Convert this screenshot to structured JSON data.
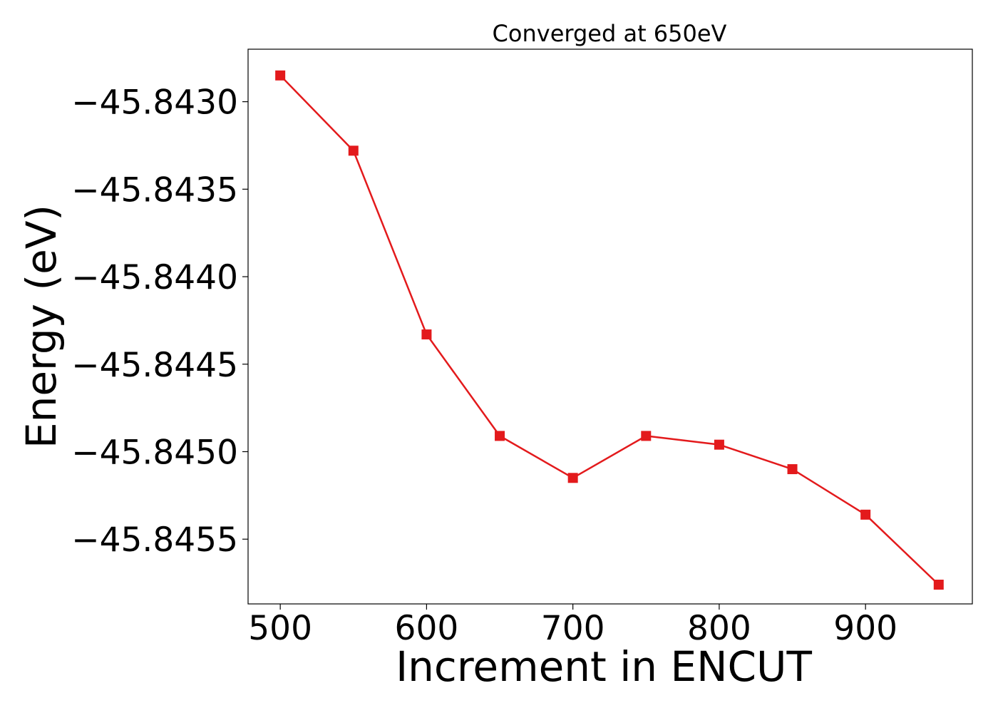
{
  "chart_data": {
    "type": "line",
    "title": "Converged at 650eV",
    "xlabel": "Increment in ENCUT",
    "ylabel": "Energy (eV)",
    "xlim": [
      478,
      973
    ],
    "ylim": [
      -45.84587,
      -45.8427
    ],
    "x_ticks": [
      500,
      600,
      700,
      800,
      900
    ],
    "x_tick_labels": [
      "500",
      "600",
      "700",
      "800",
      "900"
    ],
    "y_ticks": [
      -45.843,
      -45.8435,
      -45.844,
      -45.8445,
      -45.845,
      -45.8455
    ],
    "y_tick_labels": [
      "−45.8430",
      "−45.8435",
      "−45.8440",
      "−45.8445",
      "−45.8450",
      "−45.8455"
    ],
    "grid": false,
    "series": [
      {
        "color": "#e31a1c",
        "marker": "square",
        "points": [
          {
            "x": 500,
            "y": -45.84285
          },
          {
            "x": 550,
            "y": -45.84328
          },
          {
            "x": 600,
            "y": -45.84433
          },
          {
            "x": 650,
            "y": -45.84491
          },
          {
            "x": 700,
            "y": -45.84515
          },
          {
            "x": 750,
            "y": -45.84491
          },
          {
            "x": 800,
            "y": -45.84496
          },
          {
            "x": 850,
            "y": -45.8451
          },
          {
            "x": 900,
            "y": -45.84536
          },
          {
            "x": 950,
            "y": -45.84576
          }
        ]
      }
    ]
  }
}
